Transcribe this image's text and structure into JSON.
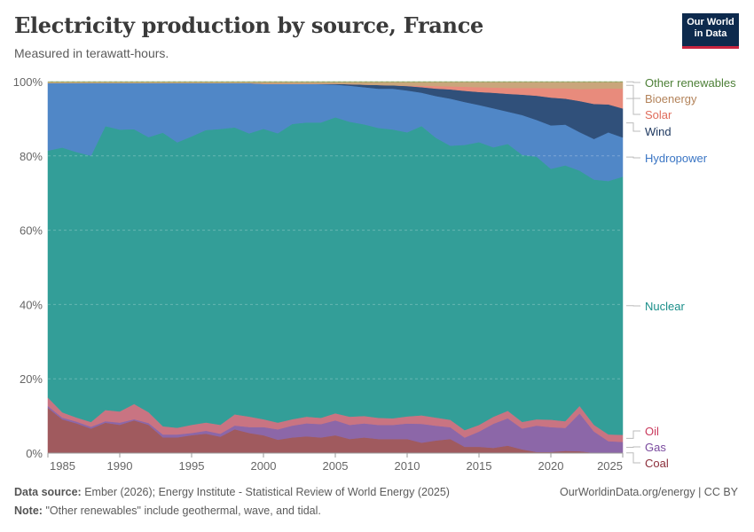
{
  "header": {
    "title": "Electricity production by source, France",
    "subtitle": "Measured in terawatt-hours.",
    "logo_text": "Our World in Data"
  },
  "footer": {
    "source_label": "Data source:",
    "source_text": "Ember (2026); Energy Institute - Statistical Review of World Energy (2025)",
    "note_label": "Note:",
    "note_text": "\"Other renewables\" include geothermal, wave, and tidal.",
    "credit": "OurWorldinData.org/energy | CC BY"
  },
  "chart_data": {
    "type": "area",
    "stacked": true,
    "relative": true,
    "unit": "%",
    "ylim": [
      0,
      100
    ],
    "xlim": [
      1985,
      2025
    ],
    "y_ticks": [
      "0%",
      "20%",
      "40%",
      "60%",
      "80%",
      "100%"
    ],
    "x_ticks": [
      "1985",
      "1990",
      "1995",
      "2000",
      "2005",
      "2010",
      "2015",
      "2020",
      "2025"
    ],
    "grid": "horizontal dashed",
    "legend": "right, inline labels",
    "x": [
      1985,
      1986,
      1987,
      1988,
      1989,
      1990,
      1991,
      1992,
      1993,
      1994,
      1995,
      1996,
      1997,
      1998,
      1999,
      2000,
      2001,
      2002,
      2003,
      2004,
      2005,
      2006,
      2007,
      2008,
      2009,
      2010,
      2011,
      2012,
      2013,
      2014,
      2015,
      2016,
      2017,
      2018,
      2019,
      2020,
      2021,
      2022,
      2023,
      2024,
      2025
    ],
    "series": [
      {
        "name": "Coal",
        "color": "#a05a5e",
        "label_color": "#8c2e3a",
        "values": [
          12.2,
          9.1,
          8.0,
          6.6,
          8.2,
          7.6,
          8.8,
          7.6,
          4.2,
          4.2,
          4.8,
          5.2,
          4.4,
          6.4,
          5.4,
          4.8,
          3.6,
          4.2,
          4.5,
          4.2,
          4.8,
          3.8,
          4.2,
          3.8,
          3.8,
          3.8,
          2.8,
          3.4,
          3.8,
          1.7,
          1.7,
          1.4,
          2.0,
          1.0,
          0.3,
          0.3,
          0.6,
          0.5,
          0.1,
          0.1,
          0.1
        ]
      },
      {
        "name": "Gas",
        "color": "#8c67a8",
        "label_color": "#7a4a9e",
        "values": [
          0.5,
          0.5,
          0.5,
          0.5,
          0.4,
          0.6,
          0.3,
          0.5,
          0.8,
          0.8,
          0.6,
          0.8,
          0.8,
          1.0,
          1.6,
          2.2,
          2.8,
          3.2,
          3.5,
          3.6,
          4.0,
          3.8,
          3.8,
          3.8,
          3.8,
          4.2,
          5.1,
          4.0,
          3.2,
          2.5,
          4.1,
          6.5,
          7.4,
          5.6,
          7.1,
          6.7,
          6.2,
          10.1,
          5.7,
          3.1,
          2.9
        ]
      },
      {
        "name": "Oil",
        "color": "#c97482",
        "label_color": "#c9385b",
        "values": [
          2.3,
          1.4,
          1.1,
          1.3,
          3.0,
          3.0,
          4.1,
          2.9,
          2.2,
          1.8,
          2.2,
          2.2,
          2.4,
          3.0,
          2.8,
          2.1,
          1.8,
          1.7,
          1.8,
          1.7,
          1.9,
          2.2,
          2.0,
          1.9,
          1.8,
          1.9,
          2.3,
          2.2,
          2.0,
          2.0,
          1.8,
          1.9,
          2.0,
          1.8,
          1.7,
          2.0,
          1.8,
          2.0,
          1.8,
          1.8,
          1.9
        ]
      },
      {
        "name": "Nuclear",
        "color": "#339e98",
        "label_color": "#1b8f8a",
        "values": [
          66.6,
          71.4,
          71.6,
          71.8,
          76.5,
          75.8,
          73.8,
          73.8,
          78.8,
          76.6,
          77.4,
          78.5,
          79.4,
          77.0,
          76.0,
          78.1,
          77.8,
          79.4,
          79.1,
          79.4,
          79.6,
          79.4,
          78.5,
          78.1,
          77.8,
          76.7,
          78.1,
          75.6,
          74.0,
          77.1,
          76.1,
          72.6,
          72.0,
          71.8,
          70.7,
          67.6,
          69.0,
          62.9,
          65.8,
          67.8,
          69.3
        ]
      },
      {
        "name": "Hydropower",
        "color": "#5087c7",
        "label_color": "#3a75c4",
        "values": [
          18.2,
          17.4,
          18.6,
          19.6,
          11.6,
          12.5,
          12.4,
          14.5,
          13.3,
          15.9,
          14.3,
          12.6,
          12.3,
          11.9,
          13.5,
          12.1,
          13.3,
          10.8,
          10.4,
          10.3,
          8.8,
          9.7,
          10.0,
          10.6,
          11.0,
          11.3,
          9.0,
          11.3,
          12.7,
          11.6,
          10.0,
          10.5,
          8.7,
          10.7,
          9.9,
          11.7,
          11.0,
          10.3,
          10.9,
          13.0,
          10.5
        ]
      },
      {
        "name": "Wind",
        "color": "#30507a",
        "label_color": "#1c365e",
        "values": [
          0,
          0,
          0,
          0,
          0,
          0,
          0,
          0,
          0,
          0,
          0,
          0,
          0,
          0,
          0,
          0,
          0,
          0,
          0,
          0.1,
          0.2,
          0.4,
          0.7,
          1.0,
          0.9,
          1.2,
          1.5,
          2.0,
          2.5,
          3.0,
          3.5,
          4.2,
          4.8,
          5.5,
          6.5,
          7.5,
          7.0,
          8.3,
          9.4,
          7.5,
          7.8
        ]
      },
      {
        "name": "Solar",
        "color": "#e88b7c",
        "label_color": "#e06c5b",
        "values": [
          0,
          0,
          0,
          0,
          0,
          0,
          0,
          0,
          0,
          0,
          0,
          0,
          0,
          0,
          0,
          0,
          0,
          0,
          0,
          0,
          0,
          0,
          0,
          0,
          0,
          0.1,
          0.4,
          0.7,
          0.8,
          1.1,
          1.3,
          1.4,
          1.6,
          1.8,
          2.1,
          2.5,
          2.8,
          3.2,
          4.1,
          4.3,
          5.3
        ]
      },
      {
        "name": "Bioenergy",
        "color": "#c9a67b",
        "label_color": "#b3835a",
        "values": [
          0.3,
          0.3,
          0.3,
          0.3,
          0.3,
          0.3,
          0.3,
          0.3,
          0.3,
          0.3,
          0.3,
          0.3,
          0.3,
          0.3,
          0.3,
          0.5,
          0.5,
          0.5,
          0.5,
          0.5,
          0.5,
          0.6,
          0.7,
          0.8,
          0.9,
          1.0,
          1.0,
          1.1,
          1.2,
          1.3,
          1.4,
          1.5,
          1.6,
          1.6,
          1.6,
          1.7,
          1.7,
          1.9,
          1.8,
          1.7,
          1.8
        ]
      },
      {
        "name": "Other renewables",
        "color": "#7fa35a",
        "label_color": "#4c7f36",
        "values": [
          0.1,
          0.1,
          0.1,
          0.1,
          0.1,
          0.1,
          0.1,
          0.1,
          0.1,
          0.1,
          0.1,
          0.1,
          0.1,
          0.1,
          0.1,
          0.1,
          0.1,
          0.1,
          0.1,
          0.1,
          0.1,
          0.1,
          0.1,
          0.1,
          0.1,
          0.1,
          0.1,
          0.1,
          0.1,
          0.1,
          0.1,
          0.1,
          0.1,
          0.1,
          0.1,
          0.1,
          0.1,
          0.1,
          0.1,
          0.1,
          0.1
        ]
      }
    ]
  }
}
